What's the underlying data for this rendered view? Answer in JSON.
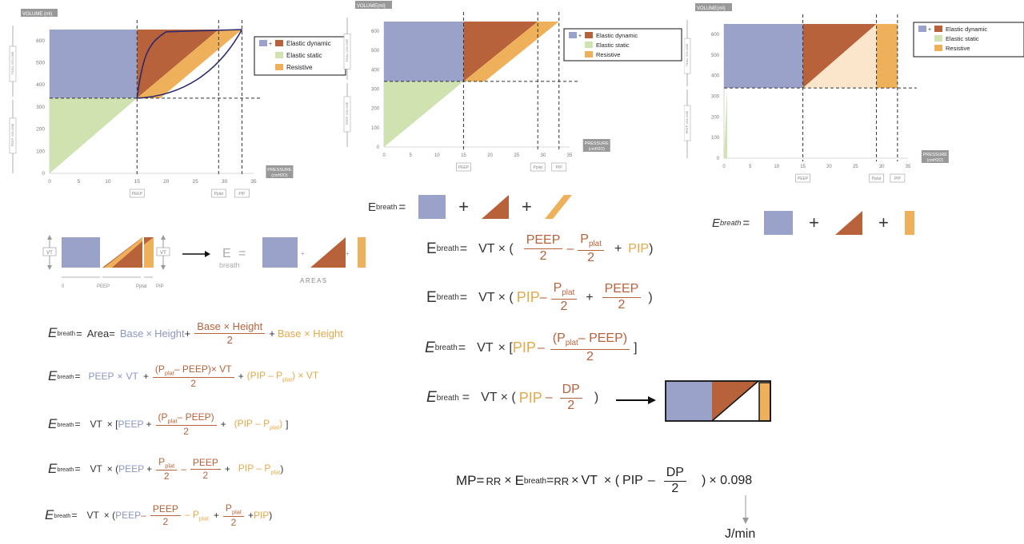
{
  "colors": {
    "blue": "#9aa2ca",
    "brown": "#b8623b",
    "green": "#cfe2b0",
    "orange": "#eeb05a",
    "navy": "#2c2a6e"
  },
  "charts": {
    "ylabel": "VOLUME (ml)",
    "ylabel_p2": "VOLUME(ml)",
    "ylabel_p3": "VOLUME(ml)",
    "xlabel": "PRESSURE",
    "xunit": "(cmH2O)",
    "tidal_volume": "TIDAL VOLUME",
    "peep_volume": "PEEP VOLUME",
    "peep_tag": "PEEP",
    "pplat_tag": "Pplat",
    "pip_tag": "PIP",
    "x_ticks": [
      "0",
      "5",
      "10",
      "15",
      "20",
      "25",
      "30",
      "35"
    ],
    "y_ticks": [
      "0",
      "100",
      "200",
      "300",
      "400",
      "500",
      "600"
    ],
    "plus_sign": "+",
    "legend": [
      "Elastic dynamic",
      "Elastic static",
      "Resistive"
    ]
  },
  "chart_data": [
    {
      "type": "area",
      "xlabel": "PRESSURE (cmH2O)",
      "ylabel": "VOLUME (ml)",
      "xlim": [
        0,
        35
      ],
      "ylim": [
        0,
        650
      ],
      "peep": 15,
      "pplat": 29,
      "pip": 33,
      "peep_volume": 340,
      "max_volume": 650,
      "series": [
        {
          "name": "Elastic dynamic"
        },
        {
          "name": "Elastic static"
        },
        {
          "name": "Resistive"
        }
      ]
    },
    {
      "type": "area",
      "xlabel": "PRESSURE (cmH2O)",
      "ylabel": "VOLUME(ml)",
      "xlim": [
        0,
        35
      ],
      "ylim": [
        0,
        650
      ],
      "peep": 15,
      "pplat": 29,
      "pip": 33,
      "peep_volume": 340,
      "max_volume": 650,
      "series": [
        {
          "name": "Elastic dynamic"
        },
        {
          "name": "Elastic static"
        },
        {
          "name": "Resistive"
        }
      ]
    },
    {
      "type": "area",
      "xlabel": "PRESSURE (cmH2O)",
      "ylabel": "VOLUME(ml)",
      "xlim": [
        0,
        35
      ],
      "ylim": [
        0,
        650
      ],
      "peep": 15,
      "pplat": 29,
      "pip": 33,
      "peep_volume": 340,
      "max_volume": 650,
      "series": [
        {
          "name": "Elastic dynamic"
        },
        {
          "name": "Elastic static"
        },
        {
          "name": "Resistive"
        }
      ]
    }
  ],
  "schematic": {
    "vt": "VT",
    "axis_0": "0",
    "axis_peep": "PEEP",
    "axis_pplat": "Pplat",
    "axis_pip": "PIP",
    "arrow": "⟶",
    "areas": "AREAS"
  },
  "text": {
    "E": "E",
    "breath": "breath",
    "eq": "=",
    "plus": "+",
    "minus": "–",
    "times": "×",
    "area": "Area=",
    "base": "Base",
    "height": "Height",
    "base_x_height": "Base × Height",
    "peep": "PEEP",
    "vt": "VT",
    "pplat": "Pplat",
    "p": "P",
    "plat": "plat",
    "pip": "PIP",
    "dp": "DP",
    "two": "2",
    "lparen": "(",
    "rparen": ")",
    "lbrack": "[",
    "rbrack": "]",
    "x_lparen": "× (",
    "x_lbrack": "× [",
    "mp": "MP=",
    "rr": "RR",
    "x_0098": "× 0.098",
    "jmin": "J/min",
    "minus_dp_frac": "DP"
  }
}
